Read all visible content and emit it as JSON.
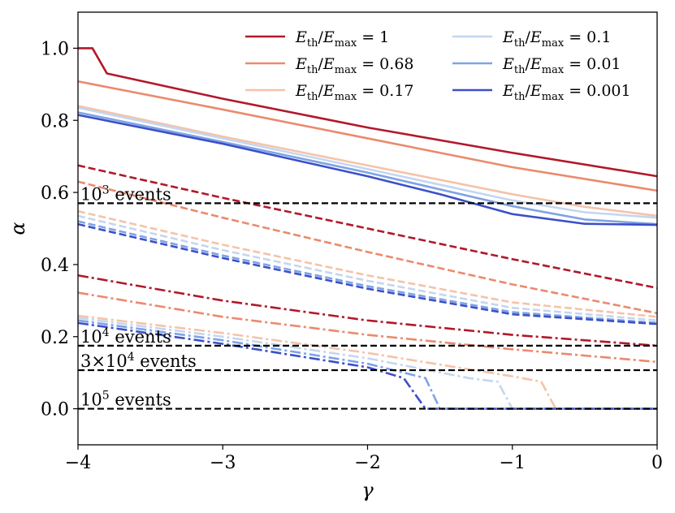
{
  "chart_data": {
    "type": "line",
    "xlabel": "γ",
    "ylabel": "α",
    "xlim": [
      -4,
      0
    ],
    "ylim": [
      -0.1,
      1.1
    ],
    "xticks": [
      -4,
      -3,
      -2,
      -1,
      0
    ],
    "xtick_labels": [
      "−4",
      "−3",
      "−2",
      "−1",
      "0"
    ],
    "yticks": [
      0.0,
      0.2,
      0.4,
      0.6,
      0.8,
      1.0
    ],
    "ytick_labels": [
      "0.0",
      "0.2",
      "0.4",
      "0.6",
      "0.8",
      "1.0"
    ],
    "grid": false,
    "legend_position": "top-right",
    "colors": {
      "ratio_1": "#b2182b",
      "ratio_0.68": "#ea8a6e",
      "ratio_0.17": "#f4c3a9",
      "ratio_0.1": "#c4d6f0",
      "ratio_0.01": "#7ea3e6",
      "ratio_0.001": "#3b50c8",
      "threshold": "#000000"
    },
    "legend": [
      {
        "key": "ratio_1",
        "label": "E_th/E_max = 1",
        "value": "1"
      },
      {
        "key": "ratio_0.68",
        "label": "E_th/E_max = 0.68",
        "value": "0.68"
      },
      {
        "key": "ratio_0.17",
        "label": "E_th/E_max = 0.17",
        "value": "0.17"
      },
      {
        "key": "ratio_0.1",
        "label": "E_th/E_max = 0.1",
        "value": "0.1"
      },
      {
        "key": "ratio_0.01",
        "label": "E_th/E_max = 0.01",
        "value": "0.01"
      },
      {
        "key": "ratio_0.001",
        "label": "E_th/E_max = 0.001",
        "value": "0.001"
      }
    ],
    "legend_label_parts": {
      "numer": "E",
      "numer_sub": "th",
      "slash": "/",
      "denom": "E",
      "denom_sub": "max",
      "eq": " = "
    },
    "thresholds": [
      {
        "y": 0.57,
        "label_base": "10",
        "label_exp": "3",
        "label_suffix": " events",
        "label": "10^3 events"
      },
      {
        "y": 0.175,
        "label_base": "10",
        "label_exp": "4",
        "label_suffix": " events",
        "label": "10^4 events"
      },
      {
        "y": 0.107,
        "label_base": "3×10",
        "label_exp": "4",
        "label_suffix": " events",
        "label": "3×10^4 events"
      },
      {
        "y": 0.0,
        "label_base": "10",
        "label_exp": "5",
        "label_suffix": " events",
        "label": "10^5 events"
      }
    ],
    "series": [
      {
        "name": "E_th/E_max = 1, 10^3 events",
        "color_key": "ratio_1",
        "style": "solid",
        "x": [
          -4.0,
          -3.9,
          -3.8,
          -3.0,
          -2.0,
          -1.0,
          0.0
        ],
        "y": [
          1.0,
          1.0,
          0.93,
          0.86,
          0.78,
          0.71,
          0.645
        ]
      },
      {
        "name": "E_th/E_max = 0.68, 10^3 events",
        "color_key": "ratio_0.68",
        "style": "solid",
        "x": [
          -4.0,
          -3.0,
          -2.0,
          -1.0,
          0.0
        ],
        "y": [
          0.908,
          0.83,
          0.75,
          0.67,
          0.605
        ]
      },
      {
        "name": "E_th/E_max = 0.17, 10^3 events",
        "color_key": "ratio_0.17",
        "style": "solid",
        "x": [
          -4.0,
          -3.0,
          -2.0,
          -1.0,
          -0.5,
          0.0
        ],
        "y": [
          0.84,
          0.755,
          0.675,
          0.595,
          0.56,
          0.535
        ]
      },
      {
        "name": "E_th/E_max = 0.1, 10^3 events",
        "color_key": "ratio_0.1",
        "style": "solid",
        "x": [
          -4.0,
          -3.0,
          -2.0,
          -1.0,
          -0.5,
          0.0
        ],
        "y": [
          0.835,
          0.75,
          0.665,
          0.578,
          0.545,
          0.53
        ]
      },
      {
        "name": "E_th/E_max = 0.01, 10^3 events",
        "color_key": "ratio_0.01",
        "style": "solid",
        "x": [
          -4.0,
          -3.0,
          -2.0,
          -1.0,
          -0.5,
          0.0
        ],
        "y": [
          0.822,
          0.74,
          0.655,
          0.562,
          0.525,
          0.512
        ]
      },
      {
        "name": "E_th/E_max = 0.001, 10^3 events",
        "color_key": "ratio_0.001",
        "style": "solid",
        "x": [
          -4.0,
          -3.0,
          -2.0,
          -1.5,
          -1.0,
          -0.5,
          0.0
        ],
        "y": [
          0.815,
          0.735,
          0.645,
          0.595,
          0.54,
          0.513,
          0.51
        ]
      },
      {
        "name": "E_th/E_max = 1, 10^4 events",
        "color_key": "ratio_1",
        "style": "dashed",
        "x": [
          -4.0,
          -3.0,
          -2.0,
          -1.0,
          0.0
        ],
        "y": [
          0.675,
          0.585,
          0.5,
          0.415,
          0.335
        ]
      },
      {
        "name": "E_th/E_max = 0.68, 10^4 events",
        "color_key": "ratio_0.68",
        "style": "dashed",
        "x": [
          -4.0,
          -3.0,
          -2.0,
          -1.0,
          0.0
        ],
        "y": [
          0.63,
          0.53,
          0.435,
          0.345,
          0.265
        ]
      },
      {
        "name": "E_th/E_max = 0.17, 10^4 events",
        "color_key": "ratio_0.17",
        "style": "dashed",
        "x": [
          -4.0,
          -3.0,
          -2.0,
          -1.0,
          0.0
        ],
        "y": [
          0.548,
          0.455,
          0.37,
          0.295,
          0.255
        ]
      },
      {
        "name": "E_th/E_max = 0.1, 10^4 events",
        "color_key": "ratio_0.1",
        "style": "dashed",
        "x": [
          -4.0,
          -3.0,
          -2.0,
          -1.0,
          0.0
        ],
        "y": [
          0.535,
          0.44,
          0.355,
          0.28,
          0.245
        ]
      },
      {
        "name": "E_th/E_max = 0.01, 10^4 events",
        "color_key": "ratio_0.01",
        "style": "dashed",
        "x": [
          -4.0,
          -3.0,
          -2.0,
          -1.0,
          0.0
        ],
        "y": [
          0.52,
          0.425,
          0.34,
          0.268,
          0.238
        ]
      },
      {
        "name": "E_th/E_max = 0.001, 10^4 events",
        "color_key": "ratio_0.001",
        "style": "dashed",
        "x": [
          -4.0,
          -3.0,
          -2.0,
          -1.0,
          0.0
        ],
        "y": [
          0.512,
          0.418,
          0.333,
          0.262,
          0.235
        ]
      },
      {
        "name": "E_th/E_max = 1, 10^5 events",
        "color_key": "ratio_1",
        "style": "dashdot",
        "x": [
          -4.0,
          -3.0,
          -2.0,
          -1.0,
          0.0
        ],
        "y": [
          0.37,
          0.3,
          0.245,
          0.205,
          0.175
        ]
      },
      {
        "name": "E_th/E_max = 0.68, 10^5 events",
        "color_key": "ratio_0.68",
        "style": "dashdot",
        "x": [
          -4.0,
          -3.0,
          -2.0,
          -1.0,
          0.0
        ],
        "y": [
          0.322,
          0.255,
          0.205,
          0.165,
          0.13
        ]
      },
      {
        "name": "E_th/E_max = 0.17, 10^5 events",
        "color_key": "ratio_0.17",
        "style": "dashdot",
        "x": [
          -4.0,
          -3.0,
          -2.0,
          -1.0,
          -0.8,
          -0.7,
          0.0
        ],
        "y": [
          0.258,
          0.21,
          0.155,
          0.09,
          0.075,
          0.0,
          0.0
        ]
      },
      {
        "name": "E_th/E_max = 0.1, 10^5 events",
        "color_key": "ratio_0.1",
        "style": "dashdot",
        "x": [
          -4.0,
          -3.0,
          -2.0,
          -1.3,
          -1.1,
          -1.0,
          0.0
        ],
        "y": [
          0.252,
          0.2,
          0.14,
          0.085,
          0.075,
          0.0,
          0.0
        ]
      },
      {
        "name": "E_th/E_max = 0.01, 10^5 events",
        "color_key": "ratio_0.01",
        "style": "dashdot",
        "x": [
          -4.0,
          -3.0,
          -2.0,
          -1.6,
          -1.5,
          0.0
        ],
        "y": [
          0.245,
          0.19,
          0.125,
          0.085,
          0.0,
          0.0
        ]
      },
      {
        "name": "E_th/E_max = 0.001, 10^5 events",
        "color_key": "ratio_0.001",
        "style": "dashdot",
        "x": [
          -4.0,
          -3.0,
          -2.0,
          -1.75,
          -1.6,
          0.0
        ],
        "y": [
          0.238,
          0.18,
          0.115,
          0.085,
          0.0,
          0.0
        ]
      }
    ]
  }
}
